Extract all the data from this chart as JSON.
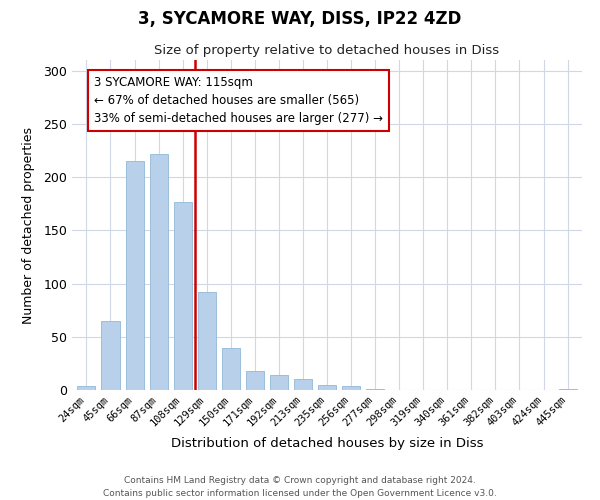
{
  "title": "3, SYCAMORE WAY, DISS, IP22 4ZD",
  "subtitle": "Size of property relative to detached houses in Diss",
  "xlabel": "Distribution of detached houses by size in Diss",
  "ylabel": "Number of detached properties",
  "bar_color": "#b8d0ea",
  "bar_edge_color": "#90b8d8",
  "categories": [
    "24sqm",
    "45sqm",
    "66sqm",
    "87sqm",
    "108sqm",
    "129sqm",
    "150sqm",
    "171sqm",
    "192sqm",
    "213sqm",
    "235sqm",
    "256sqm",
    "277sqm",
    "298sqm",
    "319sqm",
    "340sqm",
    "361sqm",
    "382sqm",
    "403sqm",
    "424sqm",
    "445sqm"
  ],
  "values": [
    4,
    65,
    215,
    222,
    177,
    92,
    39,
    18,
    14,
    10,
    5,
    4,
    1,
    0,
    0,
    0,
    0,
    0,
    0,
    0,
    1
  ],
  "ylim": [
    0,
    310
  ],
  "yticks": [
    0,
    50,
    100,
    150,
    200,
    250,
    300
  ],
  "vline_color": "#cc0000",
  "annotation_text": "3 SYCAMORE WAY: 115sqm\n← 67% of detached houses are smaller (565)\n33% of semi-detached houses are larger (277) →",
  "annotation_box_color": "#ffffff",
  "annotation_box_edge": "#cc0000",
  "footer_text": "Contains HM Land Registry data © Crown copyright and database right 2024.\nContains public sector information licensed under the Open Government Licence v3.0.",
  "background_color": "#ffffff",
  "grid_color": "#d0d8e8"
}
